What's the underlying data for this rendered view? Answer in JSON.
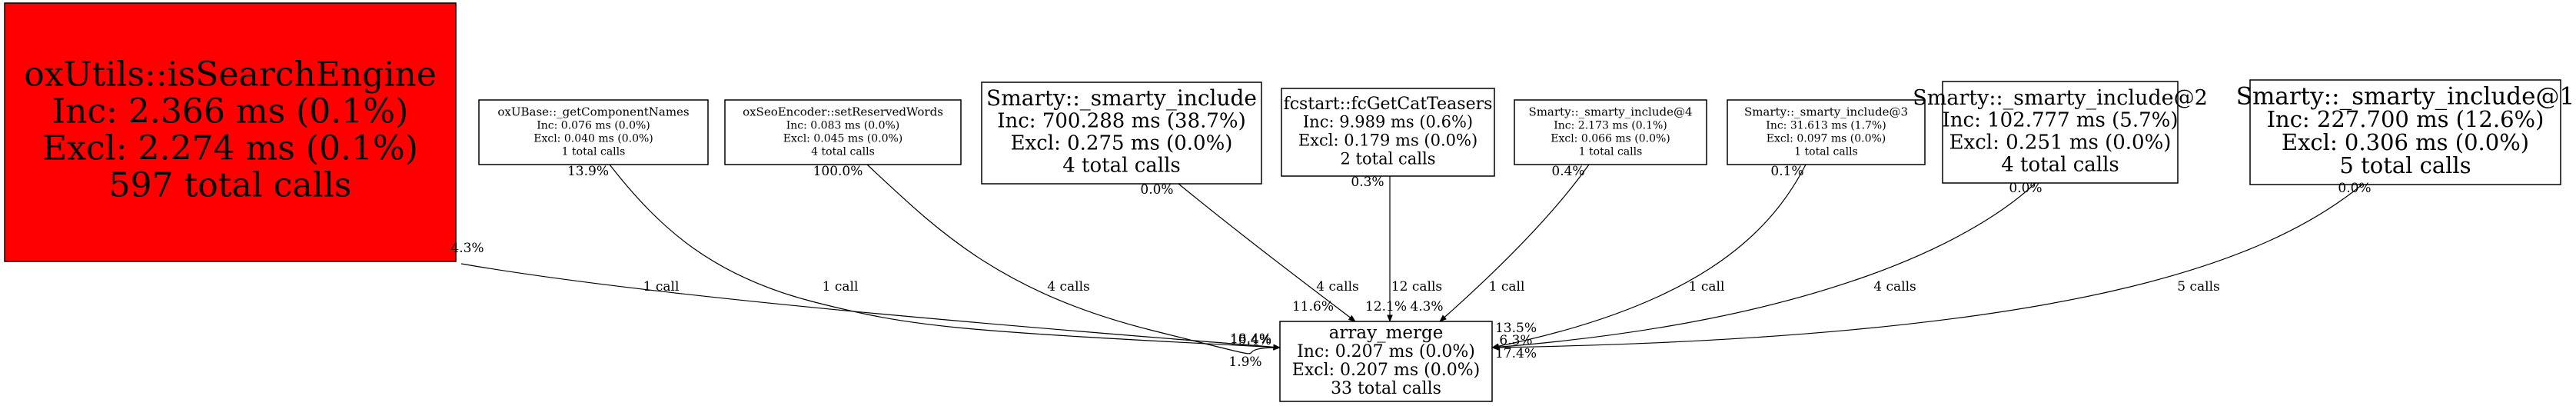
{
  "graph": {
    "target": {
      "id": "array_merge",
      "lines": [
        "array_merge",
        "Inc: 0.207 ms (0.0%)",
        "Excl: 0.207 ms (0.0%)",
        "33 total calls"
      ]
    },
    "callers": [
      {
        "id": "isSearchEngine",
        "lines": [
          "oxUtils::isSearchEngine",
          "Inc: 2.366 ms (0.1%)",
          "Excl: 2.274 ms (0.1%)",
          "597 total calls"
        ],
        "fill": "#ff0000",
        "tail_pct": "4.3%",
        "call_label": "1 call",
        "head_pct": "1.9%"
      },
      {
        "id": "getComponentNames",
        "lines": [
          "oxUBase::_getComponentNames",
          "Inc: 0.076 ms (0.0%)",
          "Excl: 0.040 ms (0.0%)",
          "1 total calls"
        ],
        "fill": "#ffffff",
        "tail_pct": "13.9%",
        "call_label": "1 call",
        "head_pct": "18.4%"
      },
      {
        "id": "setReservedWords",
        "lines": [
          "oxSeoEncoder::setReservedWords",
          "Inc: 0.083 ms (0.0%)",
          "Excl: 0.045 ms (0.0%)",
          "4 total calls"
        ],
        "fill": "#ffffff",
        "tail_pct": "100.0%",
        "call_label": "4 calls",
        "head_pct": "19.4%"
      },
      {
        "id": "smarty_include",
        "lines": [
          "Smarty::_smarty_include",
          "Inc: 700.288 ms (38.7%)",
          "Excl: 0.275 ms (0.0%)",
          "4 total calls"
        ],
        "fill": "#ffffff",
        "tail_pct": "0.0%",
        "call_label": "4 calls",
        "head_pct": "11.6%"
      },
      {
        "id": "fcGetCatTeasers",
        "lines": [
          "fcstart::fcGetCatTeasers",
          "Inc: 9.989 ms (0.6%)",
          "Excl: 0.179 ms (0.0%)",
          "2 total calls"
        ],
        "fill": "#ffffff",
        "tail_pct": "0.3%",
        "call_label": "12 calls",
        "head_pct": "12.1%"
      },
      {
        "id": "smarty_include4",
        "lines": [
          "Smarty::_smarty_include@4",
          "Inc: 2.173 ms (0.1%)",
          "Excl: 0.066 ms (0.0%)",
          "1 total calls"
        ],
        "fill": "#ffffff",
        "tail_pct": "0.4%",
        "call_label": "1 call",
        "head_pct": "4.3%"
      },
      {
        "id": "smarty_include3",
        "lines": [
          "Smarty::_smarty_include@3",
          "Inc: 31.613 ms (1.7%)",
          "Excl: 0.097 ms (0.0%)",
          "1 total calls"
        ],
        "fill": "#ffffff",
        "tail_pct": "0.1%",
        "call_label": "1 call",
        "head_pct": "13.5%"
      },
      {
        "id": "smarty_include2",
        "lines": [
          "Smarty::_smarty_include@2",
          "Inc: 102.777 ms (5.7%)",
          "Excl: 0.251 ms (0.0%)",
          "4 total calls"
        ],
        "fill": "#ffffff",
        "tail_pct": "0.0%",
        "call_label": "4 calls",
        "head_pct": "6.3%"
      },
      {
        "id": "smarty_include1",
        "lines": [
          "Smarty::_smarty_include@1",
          "Inc: 227.700 ms (12.6%)",
          "Excl: 0.306 ms (0.0%)",
          "5 total calls"
        ],
        "fill": "#ffffff",
        "tail_pct": "0.0%",
        "call_label": "5 calls",
        "head_pct": "17.4%"
      }
    ]
  }
}
